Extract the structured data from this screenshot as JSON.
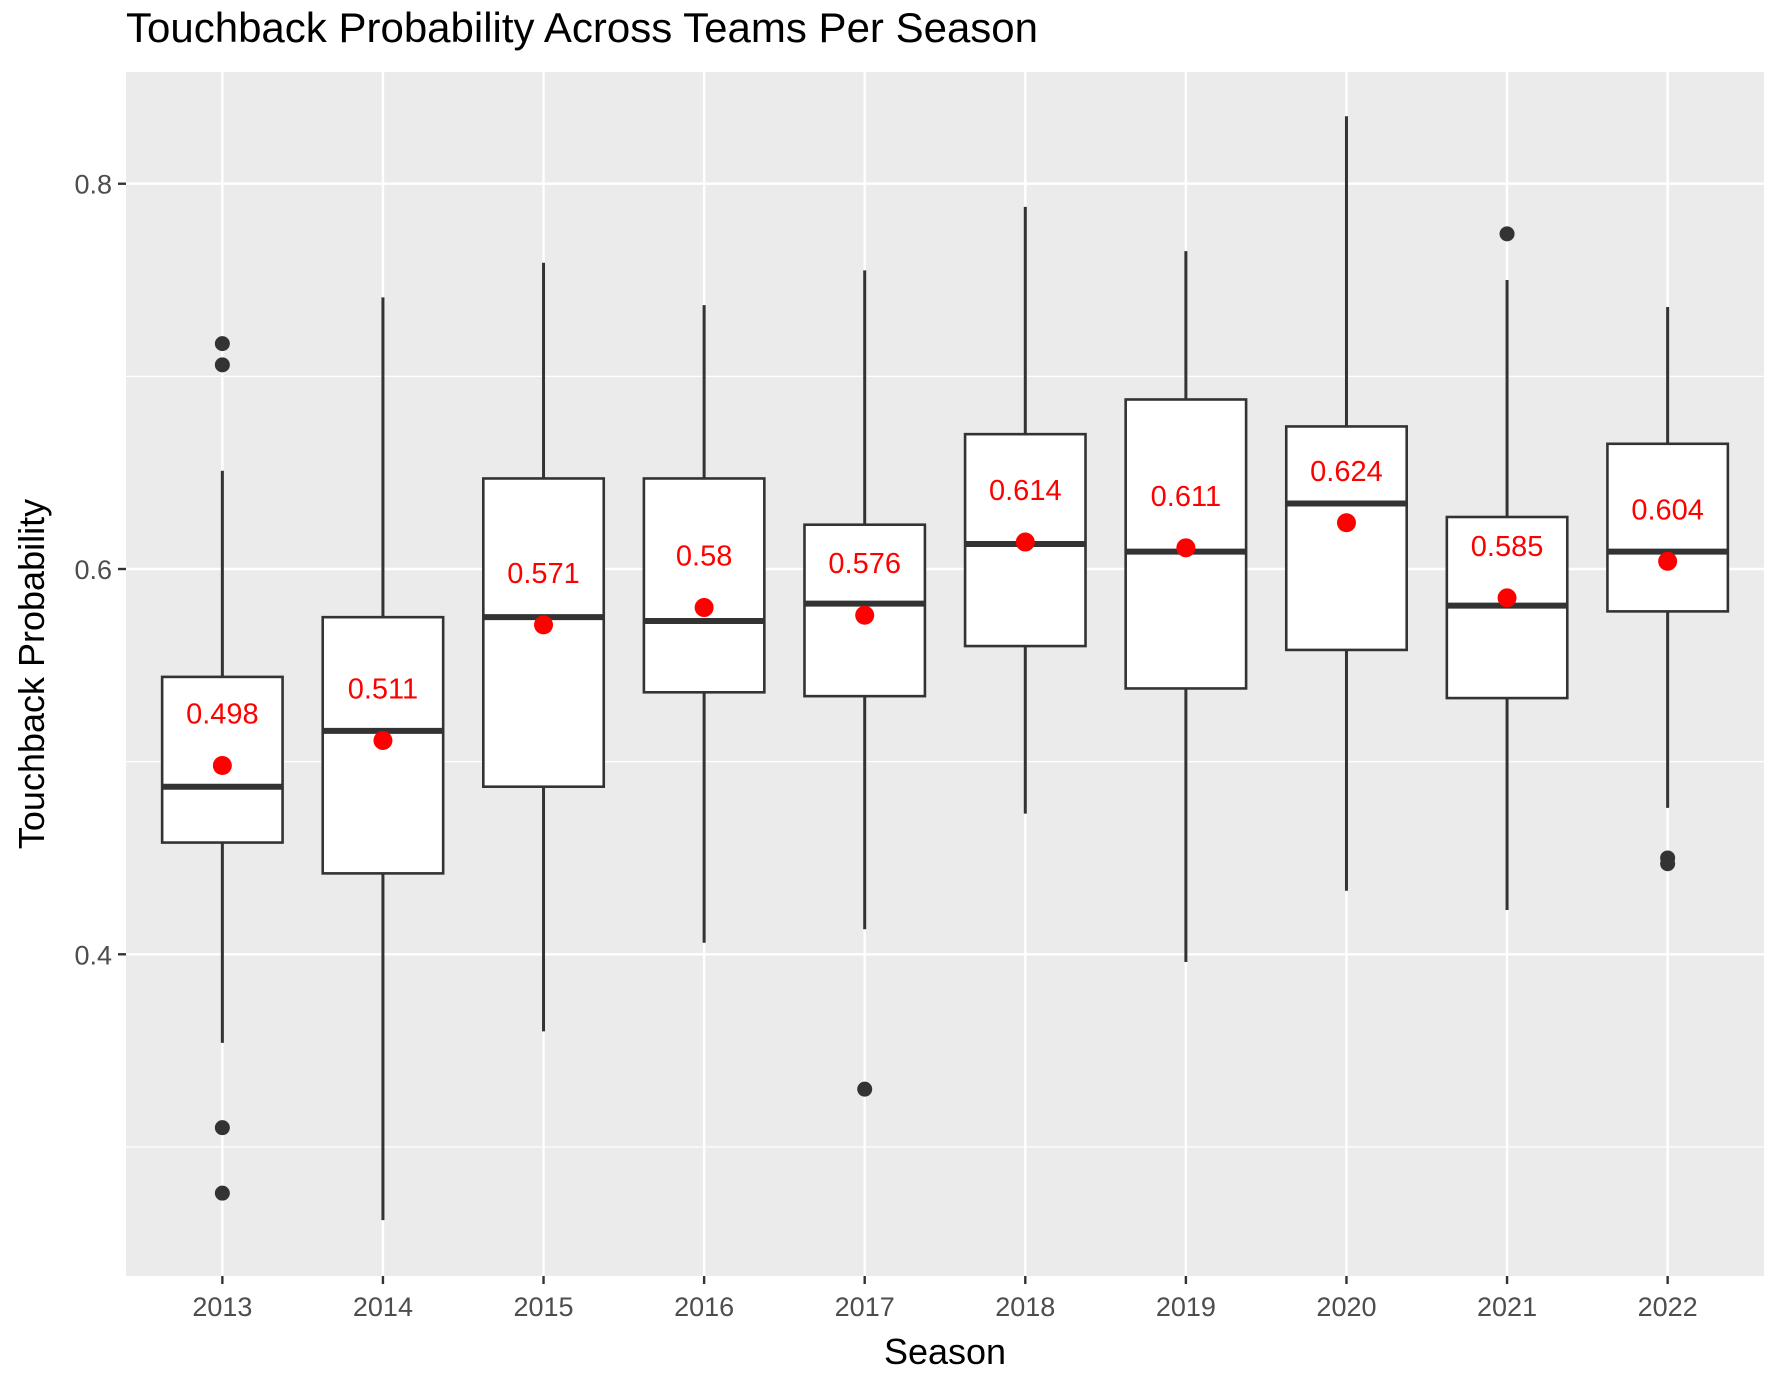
{
  "chart_data": {
    "type": "box",
    "title": "Touchback Probability Across Teams Per Season",
    "xlabel": "Season",
    "ylabel": "Touchback Probability",
    "ylim": [
      0.233,
      0.858
    ],
    "y_ticks": [
      0.4,
      0.6,
      0.8
    ],
    "y_tick_labels": [
      "0.4",
      "0.6",
      "0.8"
    ],
    "y_minor_grid": [
      0.3,
      0.5,
      0.7
    ],
    "grid": true,
    "background_color": "#ebebeb",
    "grid_color": "#ffffff",
    "box_color": "#333333",
    "mean_color": "#ff0000",
    "categories": [
      "2013",
      "2014",
      "2015",
      "2016",
      "2017",
      "2018",
      "2019",
      "2020",
      "2021",
      "2022"
    ],
    "boxes": [
      {
        "season": "2013",
        "whisker_low": 0.354,
        "q1": 0.458,
        "median": 0.487,
        "q3": 0.544,
        "whisker_high": 0.651,
        "mean": 0.498,
        "mean_label": "0.498",
        "outliers": [
          0.717,
          0.706,
          0.31,
          0.276
        ]
      },
      {
        "season": "2014",
        "whisker_low": 0.262,
        "q1": 0.442,
        "median": 0.516,
        "q3": 0.575,
        "whisker_high": 0.741,
        "mean": 0.511,
        "mean_label": "0.511",
        "outliers": []
      },
      {
        "season": "2015",
        "whisker_low": 0.36,
        "q1": 0.487,
        "median": 0.575,
        "q3": 0.647,
        "whisker_high": 0.759,
        "mean": 0.571,
        "mean_label": "0.571",
        "outliers": []
      },
      {
        "season": "2016",
        "whisker_low": 0.406,
        "q1": 0.536,
        "median": 0.573,
        "q3": 0.647,
        "whisker_high": 0.737,
        "mean": 0.58,
        "mean_label": "0.58",
        "outliers": []
      },
      {
        "season": "2017",
        "whisker_low": 0.413,
        "q1": 0.534,
        "median": 0.582,
        "q3": 0.623,
        "whisker_high": 0.755,
        "mean": 0.576,
        "mean_label": "0.576",
        "outliers": [
          0.33
        ]
      },
      {
        "season": "2018",
        "whisker_low": 0.473,
        "q1": 0.56,
        "median": 0.613,
        "q3": 0.67,
        "whisker_high": 0.788,
        "mean": 0.614,
        "mean_label": "0.614",
        "outliers": []
      },
      {
        "season": "2019",
        "whisker_low": 0.396,
        "q1": 0.538,
        "median": 0.609,
        "q3": 0.688,
        "whisker_high": 0.765,
        "mean": 0.611,
        "mean_label": "0.611",
        "outliers": []
      },
      {
        "season": "2020",
        "whisker_low": 0.433,
        "q1": 0.558,
        "median": 0.634,
        "q3": 0.674,
        "whisker_high": 0.835,
        "mean": 0.624,
        "mean_label": "0.624",
        "outliers": []
      },
      {
        "season": "2021",
        "whisker_low": 0.423,
        "q1": 0.533,
        "median": 0.581,
        "q3": 0.627,
        "whisker_high": 0.75,
        "mean": 0.585,
        "mean_label": "0.585",
        "outliers": [
          0.774
        ]
      },
      {
        "season": "2022",
        "whisker_low": 0.476,
        "q1": 0.578,
        "median": 0.609,
        "q3": 0.665,
        "whisker_high": 0.736,
        "mean": 0.604,
        "mean_label": "0.604",
        "outliers": [
          0.45,
          0.447
        ]
      }
    ]
  }
}
